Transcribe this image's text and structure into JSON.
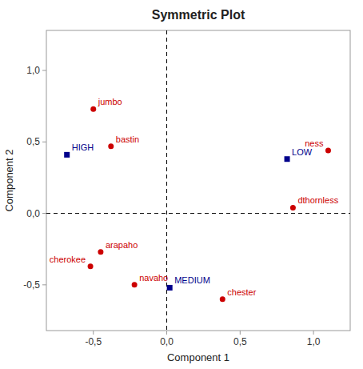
{
  "chart_data": {
    "type": "scatter",
    "title": "Symmetric Plot",
    "x_label": "Component 1",
    "y_label": "Component 2",
    "xlim": [
      -0.82,
      1.25
    ],
    "ylim": [
      -0.82,
      1.28
    ],
    "xticks": [
      {
        "value": -0.5,
        "label": "-0,5"
      },
      {
        "value": 0.0,
        "label": "0,0"
      },
      {
        "value": 0.5,
        "label": "0,5"
      },
      {
        "value": 1.0,
        "label": "1,0"
      }
    ],
    "yticks": [
      {
        "value": -0.5,
        "label": "-0,5"
      },
      {
        "value": 0.0,
        "label": "0,0"
      },
      {
        "value": 0.5,
        "label": "0,5"
      },
      {
        "value": 1.0,
        "label": "1,0"
      }
    ],
    "grid": false,
    "series": [
      {
        "color": "#CC0000",
        "marker": "circle",
        "x": [
          -0.5,
          -0.38,
          -0.45,
          -0.52,
          -0.22,
          0.38,
          0.86,
          1.1
        ],
        "values": [
          0.73,
          0.47,
          -0.27,
          -0.37,
          -0.5,
          -0.6,
          0.04,
          0.44
        ],
        "labels": [
          "jumbo",
          "bastin",
          "arapaho",
          "cherokee",
          "navaho",
          "chester",
          "dthornless",
          "ness"
        ]
      },
      {
        "color": "#00008B",
        "marker": "square",
        "x": [
          -0.68,
          0.82,
          0.02
        ],
        "values": [
          0.41,
          0.38,
          -0.52
        ],
        "labels": [
          "HIGH",
          "LOW",
          "MEDIUM"
        ]
      }
    ]
  }
}
